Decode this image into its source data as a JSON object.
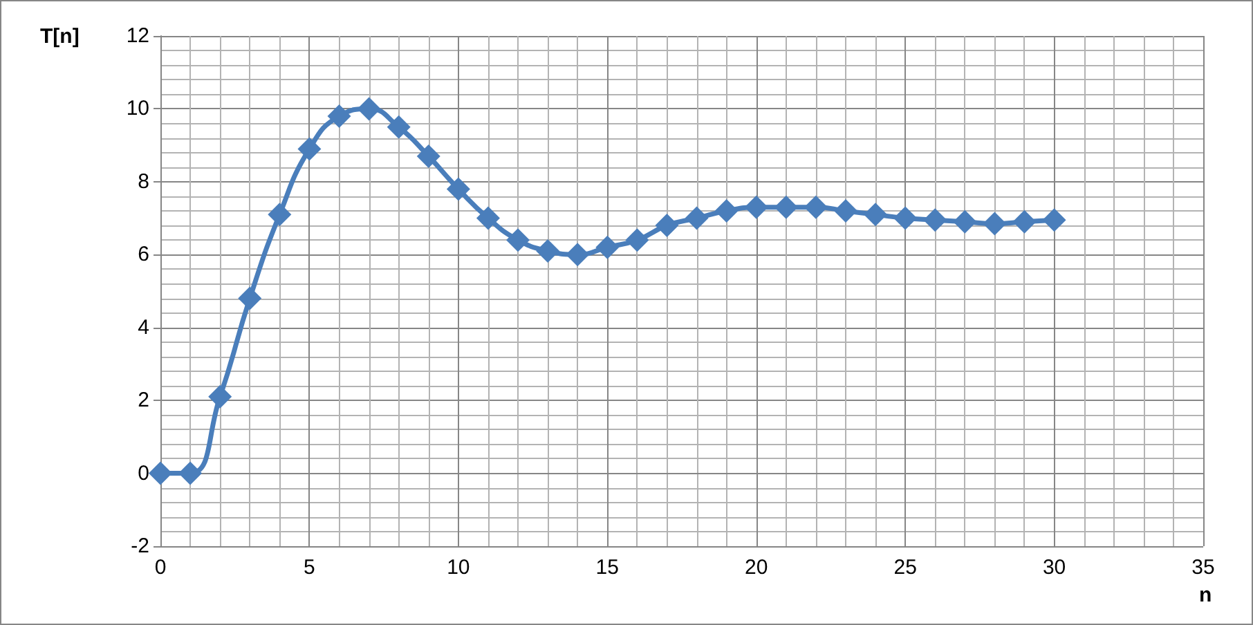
{
  "chart_data": {
    "type": "line",
    "xlabel": "n",
    "ylabel": "T[n]",
    "x": [
      0,
      1,
      2,
      3,
      4,
      5,
      6,
      7,
      8,
      9,
      10,
      11,
      12,
      13,
      14,
      15,
      16,
      17,
      18,
      19,
      20,
      21,
      22,
      23,
      24,
      25,
      26,
      27,
      28,
      29,
      30
    ],
    "series": [
      {
        "color": "#4a7ebb",
        "values": [
          0,
          0,
          2.1,
          4.8,
          7.1,
          8.9,
          9.8,
          10.0,
          9.5,
          8.7,
          7.8,
          7.0,
          6.4,
          6.1,
          6.0,
          6.2,
          6.4,
          6.8,
          7.0,
          7.2,
          7.3,
          7.3,
          7.3,
          7.2,
          7.1,
          7.0,
          6.95,
          6.9,
          6.85,
          6.9,
          6.95
        ]
      }
    ],
    "xlim": [
      0,
      35
    ],
    "xticks": [
      0,
      5,
      10,
      15,
      20,
      25,
      30,
      35
    ],
    "ylim": [
      -2,
      12
    ],
    "yticks": [
      -2,
      0,
      2,
      4,
      6,
      8,
      10,
      12
    ],
    "grid": true,
    "marker": "diamond",
    "line_style": "solid"
  }
}
